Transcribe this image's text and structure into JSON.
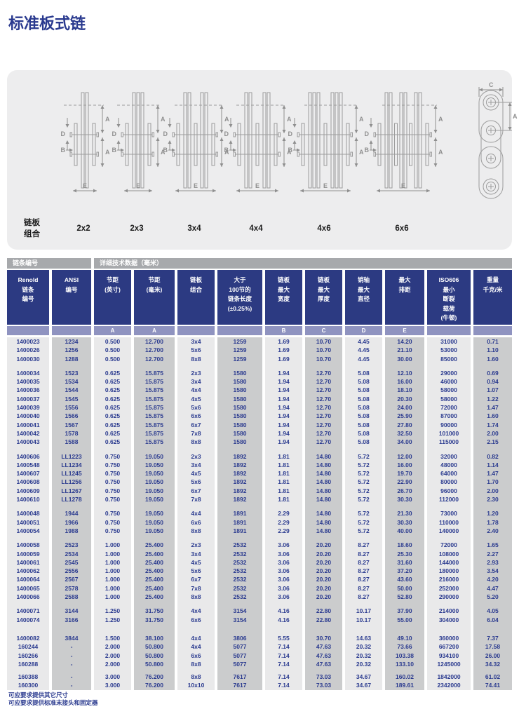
{
  "page": {
    "title": "标准板式链"
  },
  "diagram": {
    "caption_line1": "链板",
    "caption_line2": "组合",
    "combos": [
      "2x2",
      "2x3",
      "3x4",
      "4x4",
      "4x6",
      "6x6"
    ],
    "dim_labels": {
      "a": "A",
      "b": "B",
      "c": "C",
      "d": "D",
      "e": "E"
    },
    "line_color": "#9c9c9c",
    "dim_color": "#8f8f8f"
  },
  "table": {
    "band": {
      "left": "链条编号",
      "right": "详细技术数据（毫米）"
    },
    "columns": [
      {
        "lines": [
          "Renold",
          "链条",
          "编号"
        ],
        "sub": ""
      },
      {
        "lines": [
          "ANSI",
          "编号"
        ],
        "sub": ""
      },
      {
        "lines": [
          "节距",
          "(英寸)"
        ],
        "sub": "A"
      },
      {
        "lines": [
          "节距",
          "(毫米)"
        ],
        "sub": "A"
      },
      {
        "lines": [
          "链板",
          "组合"
        ],
        "sub": ""
      },
      {
        "lines": [
          "大于",
          "100节的",
          "链条长度",
          "(±0.25%)"
        ],
        "sub": ""
      },
      {
        "lines": [
          "链板",
          "最大",
          "宽度"
        ],
        "sub": "B"
      },
      {
        "lines": [
          "链板",
          "最大",
          "厚度"
        ],
        "sub": "C"
      },
      {
        "lines": [
          "销轴",
          "最大",
          "直径"
        ],
        "sub": "D"
      },
      {
        "lines": [
          "最大",
          "排距"
        ],
        "sub": "E"
      },
      {
        "lines": [
          "ISO606",
          "最小",
          "断裂",
          "载荷",
          "(牛顿)"
        ],
        "sub": ""
      },
      {
        "lines": [
          "重量",
          "千克/米"
        ],
        "sub": ""
      }
    ],
    "groups": [
      {
        "rows": [
          [
            "1400023",
            "1234",
            "0.500",
            "12.700",
            "3x4",
            "1259",
            "1.69",
            "10.70",
            "4.45",
            "14.20",
            "31000",
            "0.71"
          ],
          [
            "1400026",
            "1256",
            "0.500",
            "12.700",
            "5x6",
            "1259",
            "1.69",
            "10.70",
            "4.45",
            "21.10",
            "53000",
            "1.10"
          ],
          [
            "1400030",
            "1288",
            "0.500",
            "12.700",
            "8x8",
            "1259",
            "1.69",
            "10.70",
            "4.45",
            "30.00",
            "85000",
            "1.60"
          ]
        ]
      },
      {
        "rows": [
          [
            "1400034",
            "1523",
            "0.625",
            "15.875",
            "2x3",
            "1580",
            "1.94",
            "12.70",
            "5.08",
            "12.10",
            "29000",
            "0.69"
          ],
          [
            "1400035",
            "1534",
            "0.625",
            "15.875",
            "3x4",
            "1580",
            "1.94",
            "12.70",
            "5.08",
            "16.00",
            "46000",
            "0.94"
          ],
          [
            "1400036",
            "1544",
            "0.625",
            "15.875",
            "4x4",
            "1580",
            "1.94",
            "12.70",
            "5.08",
            "18.10",
            "58000",
            "1.07"
          ],
          [
            "1400037",
            "1545",
            "0.625",
            "15.875",
            "4x5",
            "1580",
            "1.94",
            "12.70",
            "5.08",
            "20.30",
            "58000",
            "1.22"
          ],
          [
            "1400039",
            "1556",
            "0.625",
            "15.875",
            "5x6",
            "1580",
            "1.94",
            "12.70",
            "5.08",
            "24.00",
            "72000",
            "1.47"
          ],
          [
            "1400040",
            "1566",
            "0.625",
            "15.875",
            "6x6",
            "1580",
            "1.94",
            "12.70",
            "5.08",
            "25.90",
            "87000",
            "1.60"
          ],
          [
            "1400041",
            "1567",
            "0.625",
            "15.875",
            "6x7",
            "1580",
            "1.94",
            "12.70",
            "5.08",
            "27.80",
            "90000",
            "1.74"
          ],
          [
            "1400042",
            "1578",
            "0.625",
            "15.875",
            "7x8",
            "1580",
            "1.94",
            "12.70",
            "5.08",
            "32.50",
            "101000",
            "2.00"
          ],
          [
            "1400043",
            "1588",
            "0.625",
            "15.875",
            "8x8",
            "1580",
            "1.94",
            "12.70",
            "5.08",
            "34.00",
            "115000",
            "2.15"
          ]
        ]
      },
      {
        "rows": [
          [
            "1400606",
            "LL1223",
            "0.750",
            "19.050",
            "2x3",
            "1892",
            "1.81",
            "14.80",
            "5.72",
            "12.00",
            "32000",
            "0.82"
          ],
          [
            "1400548",
            "LL1234",
            "0.750",
            "19.050",
            "3x4",
            "1892",
            "1.81",
            "14.80",
            "5.72",
            "16.00",
            "48000",
            "1.14"
          ],
          [
            "1400607",
            "LL1245",
            "0.750",
            "19.050",
            "4x5",
            "1892",
            "1.81",
            "14.80",
            "5.72",
            "19.70",
            "64000",
            "1.47"
          ],
          [
            "1400608",
            "LL1256",
            "0.750",
            "19.050",
            "5x6",
            "1892",
            "1.81",
            "14.80",
            "5.72",
            "22.90",
            "80000",
            "1.70"
          ],
          [
            "1400609",
            "LL1267",
            "0.750",
            "19.050",
            "6x7",
            "1892",
            "1.81",
            "14.80",
            "5.72",
            "26.70",
            "96000",
            "2.00"
          ],
          [
            "1400610",
            "LL1278",
            "0.750",
            "19.050",
            "7x8",
            "1892",
            "1.81",
            "14.80",
            "5.72",
            "30.30",
            "112000",
            "2.30"
          ]
        ]
      },
      {
        "rows": [
          [
            "1400048",
            "1944",
            "0.750",
            "19.050",
            "4x4",
            "1891",
            "2.29",
            "14.80",
            "5.72",
            "21.30",
            "73000",
            "1.20"
          ],
          [
            "1400051",
            "1966",
            "0.750",
            "19.050",
            "6x6",
            "1891",
            "2.29",
            "14.80",
            "5.72",
            "30.30",
            "110000",
            "1.78"
          ],
          [
            "1400054",
            "1988",
            "0.750",
            "19.050",
            "8x8",
            "1891",
            "2.29",
            "14.80",
            "5.72",
            "40.00",
            "140000",
            "2.40"
          ]
        ]
      },
      {
        "rows": [
          [
            "1400058",
            "2523",
            "1.000",
            "25.400",
            "2x3",
            "2532",
            "3.06",
            "20.20",
            "8.27",
            "18.60",
            "72000",
            "1.65"
          ],
          [
            "1400059",
            "2534",
            "1.000",
            "25.400",
            "3x4",
            "2532",
            "3.06",
            "20.20",
            "8.27",
            "25.30",
            "108000",
            "2.27"
          ],
          [
            "1400061",
            "2545",
            "1.000",
            "25.400",
            "4x5",
            "2532",
            "3.06",
            "20.20",
            "8.27",
            "31.60",
            "144000",
            "2.93"
          ],
          [
            "1400062",
            "2556",
            "1.000",
            "25.400",
            "5x6",
            "2532",
            "3.06",
            "20.20",
            "8.27",
            "37.20",
            "180000",
            "3.54"
          ],
          [
            "1400064",
            "2567",
            "1.000",
            "25.400",
            "6x7",
            "2532",
            "3.06",
            "20.20",
            "8.27",
            "43.60",
            "216000",
            "4.20"
          ],
          [
            "1400065",
            "2578",
            "1.000",
            "25.400",
            "7x8",
            "2532",
            "3.06",
            "20.20",
            "8.27",
            "50.00",
            "252000",
            "4.47"
          ],
          [
            "1400066",
            "2588",
            "1.000",
            "25.400",
            "8x8",
            "2532",
            "3.06",
            "20.20",
            "8.27",
            "52.80",
            "290000",
            "5.20"
          ]
        ]
      },
      {
        "rows": [
          [
            "1400071",
            "3144",
            "1.250",
            "31.750",
            "4x4",
            "3154",
            "4.16",
            "22.80",
            "10.17",
            "37.90",
            "214000",
            "4.05"
          ],
          [
            "1400074",
            "3166",
            "1.250",
            "31.750",
            "6x6",
            "3154",
            "4.16",
            "22.80",
            "10.17",
            "55.00",
            "304000",
            "6.04"
          ]
        ]
      },
      {
        "rows": [
          [
            "1400082",
            "3844",
            "1.500",
            "38.100",
            "4x4",
            "3806",
            "5.55",
            "30.70",
            "14.63",
            "49.10",
            "360000",
            "7.37"
          ],
          [
            "160244",
            "-",
            "2.000",
            "50.800",
            "4x4",
            "5077",
            "7.14",
            "47.63",
            "20.32",
            "73.66",
            "667200",
            "17.58"
          ],
          [
            "160266",
            "-",
            "2.000",
            "50.800",
            "6x6",
            "5077",
            "7.14",
            "47.63",
            "20.32",
            "103.38",
            "934100",
            "26.00"
          ],
          [
            "160288",
            "-",
            "2.000",
            "50.800",
            "8x8",
            "5077",
            "7.14",
            "47.63",
            "20.32",
            "133.10",
            "1245000",
            "34.32"
          ]
        ]
      },
      {
        "rows": [
          [
            "160388",
            "-",
            "3.000",
            "76.200",
            "8x8",
            "7617",
            "7.14",
            "73.03",
            "34.67",
            "160.02",
            "1842000",
            "61.02"
          ],
          [
            "160300",
            "-",
            "3.000",
            "76.200",
            "10x10",
            "7617",
            "7.14",
            "73.03",
            "34.67",
            "189.61",
            "2342000",
            "74.41"
          ]
        ]
      }
    ],
    "footnotes": [
      "可应要求提供其它尺寸",
      "可应要求提供标准末接头和固定器"
    ],
    "colors": {
      "navy_text": "#2a3a8f",
      "header_bg": "#2c3a82",
      "band_bg": "#a7a9ac",
      "subheader_bg": "#8f93c0",
      "stripe_light": "#e9e9ea",
      "stripe_dark": "#cbcccd"
    }
  }
}
